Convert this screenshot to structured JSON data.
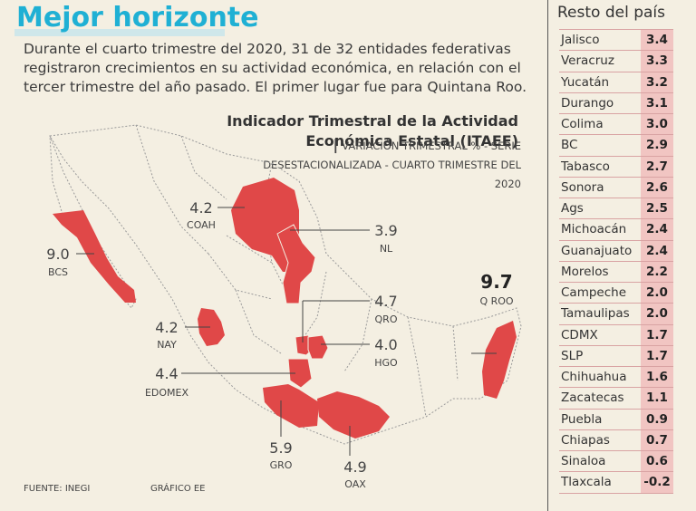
{
  "header": {
    "title": "Mejor horizonte",
    "intro": "Durante el cuarto trimestre del 2020, 31 de 32 entidades federativas registraron crecimientos en su actividad económica, en relación con el tercer trimestre del año pasado. El primer lugar fue para Quintana Roo."
  },
  "map": {
    "title": "Indicador Trimestral de la Actividad Económica Estatal (ITAEE)",
    "separator": "|",
    "subtitle": "VARIACIÓN TRIMESTRAL % - SERIE DESESTACIONALIZADA - CUARTO TRIMESTRE DEL 2020"
  },
  "chart_data": {
    "type": "table",
    "title": "Indicador Trimestral de la Actividad Económica Estatal (ITAEE)",
    "unit": "Variación trimestral %",
    "highlighted": [
      {
        "state": "Q ROO",
        "value": "9.7"
      },
      {
        "state": "BCS",
        "value": "9.0"
      },
      {
        "state": "GRO",
        "value": "5.9"
      },
      {
        "state": "OAX",
        "value": "4.9"
      },
      {
        "state": "QRO",
        "value": "4.7"
      },
      {
        "state": "EDOMEX",
        "value": "4.4"
      },
      {
        "state": "COAH",
        "value": "4.2"
      },
      {
        "state": "NAY",
        "value": "4.2"
      },
      {
        "state": "HGO",
        "value": "4.0"
      },
      {
        "state": "NL",
        "value": "3.9"
      }
    ],
    "rest": [
      {
        "state": "Jalisco",
        "value": "3.4"
      },
      {
        "state": "Veracruz",
        "value": "3.3"
      },
      {
        "state": "Yucatán",
        "value": "3.2"
      },
      {
        "state": "Durango",
        "value": "3.1"
      },
      {
        "state": "Colima",
        "value": "3.0"
      },
      {
        "state": "BC",
        "value": "2.9"
      },
      {
        "state": "Tabasco",
        "value": "2.7"
      },
      {
        "state": "Sonora",
        "value": "2.6"
      },
      {
        "state": "Ags",
        "value": "2.5"
      },
      {
        "state": "Michoacán",
        "value": "2.4"
      },
      {
        "state": "Guanajuato",
        "value": "2.4"
      },
      {
        "state": "Morelos",
        "value": "2.2"
      },
      {
        "state": "Campeche",
        "value": "2.0"
      },
      {
        "state": "Tamaulipas",
        "value": "2.0"
      },
      {
        "state": "CDMX",
        "value": "1.7"
      },
      {
        "state": "SLP",
        "value": "1.7"
      },
      {
        "state": "Chihuahua",
        "value": "1.6"
      },
      {
        "state": "Zacatecas",
        "value": "1.1"
      },
      {
        "state": "Puebla",
        "value": "0.9"
      },
      {
        "state": "Chiapas",
        "value": "0.7"
      },
      {
        "state": "Sinaloa",
        "value": "0.6"
      },
      {
        "state": "Tlaxcala",
        "value": "-0.2"
      }
    ]
  },
  "panel": {
    "title": "Resto del país"
  },
  "footer": {
    "source": "FUENTE: INEGI",
    "credit": "GRÁFICO EE"
  },
  "colors": {
    "accent": "#1fb0d4",
    "highlight": "#e04848",
    "table_fill": "#f1c5c2"
  }
}
